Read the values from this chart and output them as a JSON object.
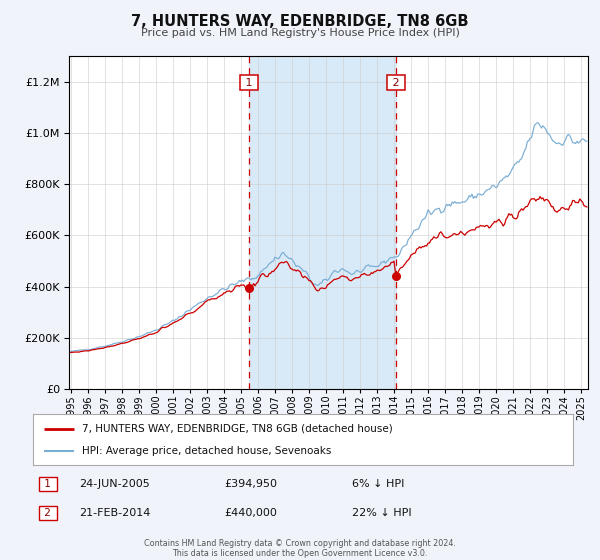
{
  "title": "7, HUNTERS WAY, EDENBRIDGE, TN8 6GB",
  "subtitle": "Price paid vs. HM Land Registry's House Price Index (HPI)",
  "red_label": "7, HUNTERS WAY, EDENBRIDGE, TN8 6GB (detached house)",
  "blue_label": "HPI: Average price, detached house, Sevenoaks",
  "sale1_date": "24-JUN-2005",
  "sale1_price": 394950,
  "sale1_pct": "6%",
  "sale1_dir": "↓",
  "sale2_date": "21-FEB-2014",
  "sale2_price": 440000,
  "sale2_pct": "22%",
  "sale2_dir": "↓",
  "sale1_x": 2005.47,
  "sale2_x": 2014.12,
  "ylim": [
    0,
    1300000
  ],
  "xlim_start": 1994.9,
  "xlim_end": 2025.4,
  "footer1": "Contains HM Land Registry data © Crown copyright and database right 2024.",
  "footer2": "This data is licensed under the Open Government Licence v3.0.",
  "bg_color": "#f0f4fa",
  "plot_bg": "#ffffff",
  "red_color": "#cc0000",
  "blue_color": "#7aadd4",
  "shade_color": "#d8eaf7"
}
